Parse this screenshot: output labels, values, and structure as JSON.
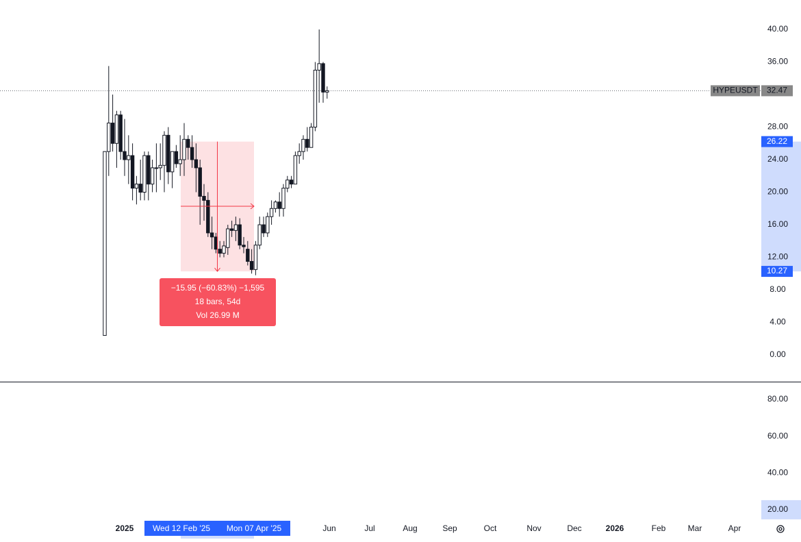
{
  "chart_data": {
    "type": "candlestick",
    "symbol": "HYPEUSDT",
    "last_price": 32.47,
    "open": [
      2.4,
      25,
      28.5,
      26,
      29.5,
      25,
      24,
      24.5,
      20.5,
      21,
      20,
      24.5,
      21,
      23,
      23,
      23.3,
      27,
      22.5,
      25,
      23.5,
      24,
      26.5,
      25.5,
      24,
      23,
      19.5,
      19,
      15,
      14.5,
      13,
      12.5,
      13.2,
      15.5,
      15.3,
      16,
      13.5,
      13,
      11.5,
      10.5,
      13.5,
      16,
      15,
      17,
      18,
      18.8,
      18,
      20.5,
      21.5,
      21,
      24.5,
      25,
      26.5,
      25.5,
      28,
      35,
      35.8,
      32.3
    ],
    "high": [
      25,
      35.5,
      32,
      30,
      30,
      29,
      27,
      26,
      22,
      24,
      25,
      25,
      24,
      26,
      26,
      27.5,
      28,
      25,
      25.8,
      27,
      28.5,
      27,
      27,
      26,
      24,
      21,
      20,
      17,
      15,
      14,
      14,
      16,
      16.5,
      17,
      16.8,
      14.5,
      14,
      13,
      14,
      17,
      17,
      17.5,
      19,
      19,
      20,
      21,
      22,
      22,
      25,
      26,
      27,
      28,
      28.5,
      36,
      40,
      36,
      33
    ],
    "low": [
      2.4,
      22,
      25,
      23,
      24,
      22,
      21,
      19,
      18.5,
      19,
      19,
      19,
      20,
      20,
      21.5,
      20,
      21,
      20.5,
      23,
      22,
      22,
      24,
      23,
      20,
      16,
      16.5,
      14.5,
      13,
      12.5,
      12,
      12,
      12.3,
      14.5,
      14,
      13,
      12.5,
      11,
      10,
      9.8,
      13,
      14.5,
      14.5,
      16,
      17.5,
      17,
      17,
      20,
      20.5,
      21,
      23.5,
      24,
      25,
      25.5,
      27.5,
      31,
      31,
      31.5
    ],
    "close": [
      25,
      28.5,
      26,
      29.5,
      25,
      24,
      24.5,
      20.5,
      21,
      20,
      24.5,
      21,
      23,
      23,
      23.3,
      27,
      22.5,
      25,
      23.5,
      24,
      26.5,
      25.5,
      24,
      23,
      19.5,
      19,
      15,
      14.5,
      13,
      12.5,
      13.4,
      15.5,
      15.3,
      16,
      13.5,
      13.3,
      11.5,
      10.5,
      13.5,
      16,
      15,
      17,
      18,
      18.8,
      18,
      20.5,
      21.5,
      21,
      24.5,
      25,
      26.5,
      25.5,
      28,
      35,
      35.8,
      32.3,
      32.47
    ],
    "ylim": [
      -3.28,
      43.62
    ],
    "yticks": [
      {
        "value": 0,
        "label": "0.00"
      },
      {
        "value": 4,
        "label": "4.00"
      },
      {
        "value": 8,
        "label": "8.00"
      },
      {
        "value": 12,
        "label": "12.00"
      },
      {
        "value": 16,
        "label": "16.00"
      },
      {
        "value": 20,
        "label": "20.00"
      },
      {
        "value": 24,
        "label": "24.00"
      },
      {
        "value": 28,
        "label": "28.00"
      },
      {
        "value": 36,
        "label": "36.00"
      },
      {
        "value": 40,
        "label": "40.00"
      }
    ],
    "x_labels": [
      "2025",
      "Jun",
      "Jul",
      "Aug",
      "Sep",
      "Oct",
      "Nov",
      "Dec",
      "2026",
      "Feb",
      "Mar",
      "Apr"
    ],
    "measure": {
      "top": 26.22,
      "bottom": 10.27,
      "change": "−15.95 (−60.83%) −1,595",
      "bars": "18 bars, 54d",
      "volume": "Vol 26.99 M",
      "start_date": "Wed 12 Feb '25",
      "end_date": "Mon 07 Apr '25"
    },
    "lower_pane": {
      "ylim": [
        14.0,
        89.35
      ],
      "yticks": [
        {
          "value": 20,
          "label": "20.00"
        },
        {
          "value": 40,
          "label": "40.00"
        },
        {
          "value": 60,
          "label": "60.00"
        },
        {
          "value": 80,
          "label": "80.00"
        }
      ]
    }
  }
}
